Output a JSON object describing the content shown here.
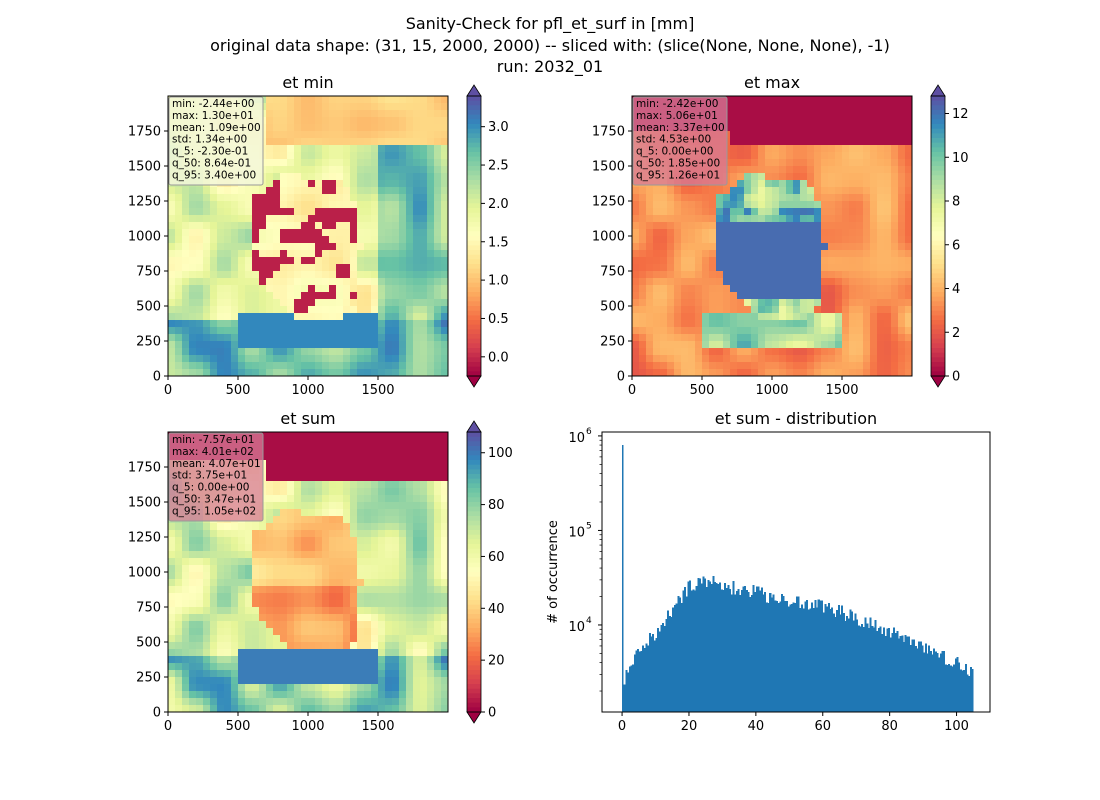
{
  "figure": {
    "title_lines": [
      "Sanity-Check for pfl_et_surf in [mm]",
      "original data shape: (31, 15, 2000, 2000) -- sliced with: (slice(None, None, None), -1)",
      "run: 2032_01"
    ]
  },
  "colors": {
    "histogram_bar": "#1f77b4",
    "colormap": "Spectral",
    "stats_box_light": "#f3f7d9",
    "stats_box_pink": "#d77b97"
  },
  "chart_data": [
    {
      "type": "heatmap",
      "title": "et min",
      "colormap": "Spectral",
      "xlim": [
        0,
        2000
      ],
      "ylim": [
        0,
        2000
      ],
      "x_ticks": [
        "0",
        "500",
        "1000",
        "1500"
      ],
      "y_ticks": [
        "0",
        "250",
        "500",
        "750",
        "1000",
        "1250",
        "1500",
        "1750"
      ],
      "colorbar": {
        "range": [
          -0.25,
          3.4
        ],
        "ticks": [
          "0.0",
          "0.5",
          "1.0",
          "1.5",
          "2.0",
          "2.5",
          "3.0"
        ],
        "extend": "both"
      },
      "stats": [
        "min: -2.44e+00",
        "max: 1.30e+01",
        "mean: 1.09e+00",
        "std: 1.34e+00",
        "q_5: -2.30e-01",
        "q_50: 8.64e-01",
        "q_95: 3.40e+00"
      ]
    },
    {
      "type": "heatmap",
      "title": "et max",
      "colormap": "Spectral",
      "xlim": [
        0,
        2000
      ],
      "ylim": [
        0,
        2000
      ],
      "x_ticks": [
        "0",
        "500",
        "1000",
        "1500"
      ],
      "y_ticks": [
        "0",
        "250",
        "500",
        "750",
        "1000",
        "1250",
        "1500",
        "1750"
      ],
      "colorbar": {
        "range": [
          0,
          12.8
        ],
        "ticks": [
          "0",
          "2",
          "4",
          "6",
          "8",
          "10",
          "12"
        ],
        "extend": "both"
      },
      "stats": [
        "min: -2.42e+00",
        "max: 5.06e+01",
        "mean: 3.37e+00",
        "std: 4.53e+00",
        "q_5: 0.00e+00",
        "q_50: 1.85e+00",
        "q_95: 1.26e+01"
      ]
    },
    {
      "type": "heatmap",
      "title": "et sum",
      "colormap": "Spectral",
      "xlim": [
        0,
        2000
      ],
      "ylim": [
        0,
        2000
      ],
      "x_ticks": [
        "0",
        "500",
        "1000",
        "1500"
      ],
      "y_ticks": [
        "0",
        "250",
        "500",
        "750",
        "1000",
        "1250",
        "1500",
        "1750"
      ],
      "colorbar": {
        "range": [
          0,
          108
        ],
        "ticks": [
          "0",
          "20",
          "40",
          "60",
          "80",
          "100"
        ],
        "extend": "both"
      },
      "stats": [
        "min: -7.57e+01",
        "max: 4.01e+02",
        "mean: 4.07e+01",
        "std: 3.75e+01",
        "q_5: 0.00e+00",
        "q_50: 3.47e+01",
        "q_95: 1.05e+02"
      ]
    },
    {
      "type": "bar",
      "title": "et sum - distribution",
      "ylabel": "# of occurrence",
      "xlabel": "",
      "yscale": "log",
      "xlim": [
        -6,
        110
      ],
      "ylim": [
        1200,
        1100000
      ],
      "x_ticks": [
        0,
        20,
        40,
        60,
        80,
        100
      ],
      "y_ticks": [
        {
          "value": 10000,
          "base": "10",
          "exp": "4"
        },
        {
          "value": 100000,
          "base": "10",
          "exp": "5"
        },
        {
          "value": 1000000,
          "base": "10",
          "exp": "6"
        }
      ],
      "bin_width": 0.5,
      "spike": {
        "x": 0,
        "value": 800000
      },
      "profile": [
        [
          0.5,
          2800
        ],
        [
          2,
          4000
        ],
        [
          5,
          5000
        ],
        [
          8,
          7000
        ],
        [
          12,
          10000
        ],
        [
          16,
          17000
        ],
        [
          20,
          26000
        ],
        [
          25,
          30000
        ],
        [
          30,
          27000
        ],
        [
          40,
          22000
        ],
        [
          50,
          18000
        ],
        [
          60,
          16000
        ],
        [
          70,
          12000
        ],
        [
          80,
          8500
        ],
        [
          90,
          5500
        ],
        [
          100,
          4000
        ],
        [
          104.5,
          3000
        ]
      ]
    }
  ]
}
